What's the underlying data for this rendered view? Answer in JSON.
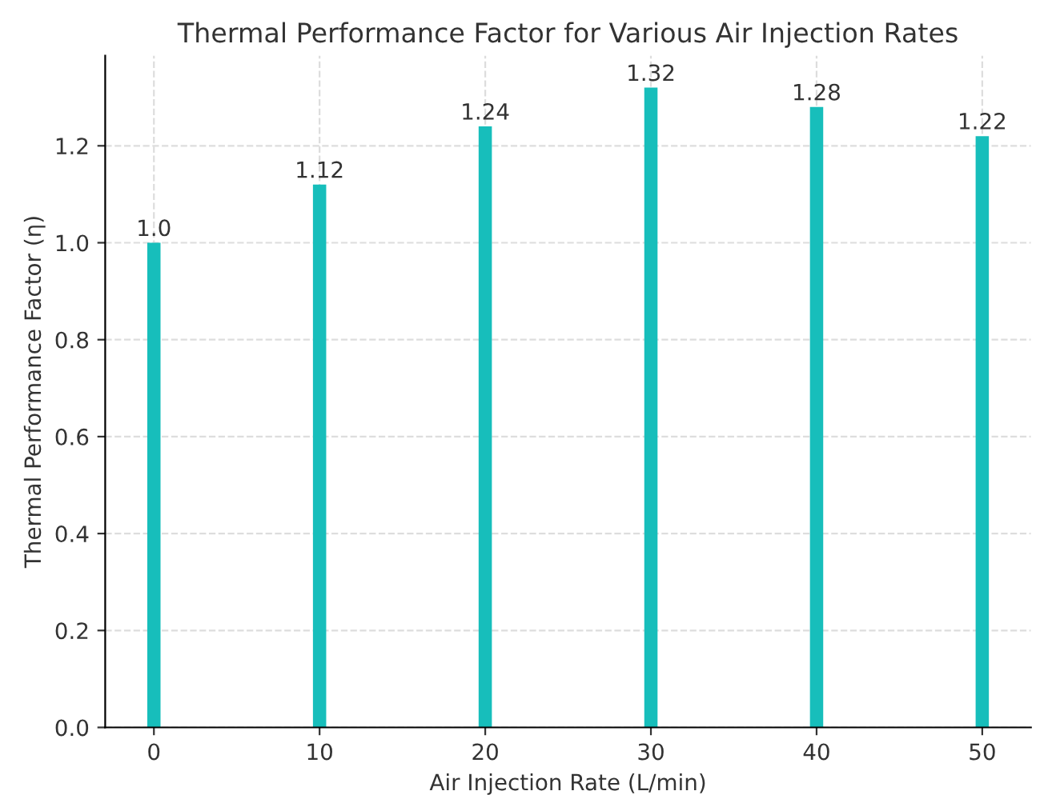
{
  "chart_data": {
    "type": "bar",
    "title": "Thermal Performance Factor for Various Air Injection Rates",
    "xlabel": "Air Injection Rate (L/min)",
    "ylabel": "Thermal Performance Factor (η)",
    "x": [
      0,
      10,
      20,
      30,
      40,
      50
    ],
    "series": [
      {
        "color": "#17bebb",
        "values": [
          1.0,
          1.12,
          1.24,
          1.32,
          1.28,
          1.22
        ]
      }
    ],
    "value_labels": [
      "1.0",
      "1.12",
      "1.24",
      "1.32",
      "1.28",
      "1.22"
    ],
    "xlim": [
      -2.94,
      52.94
    ],
    "xticks": [
      0,
      10,
      20,
      30,
      40,
      50
    ],
    "ylim": [
      0,
      1.386
    ],
    "yticks": [
      {
        "value": 0,
        "label": "0.0"
      },
      0.2,
      0.4,
      0.6,
      0.8,
      {
        "value": 1,
        "label": "1.0"
      },
      1.2
    ],
    "grid": true
  }
}
